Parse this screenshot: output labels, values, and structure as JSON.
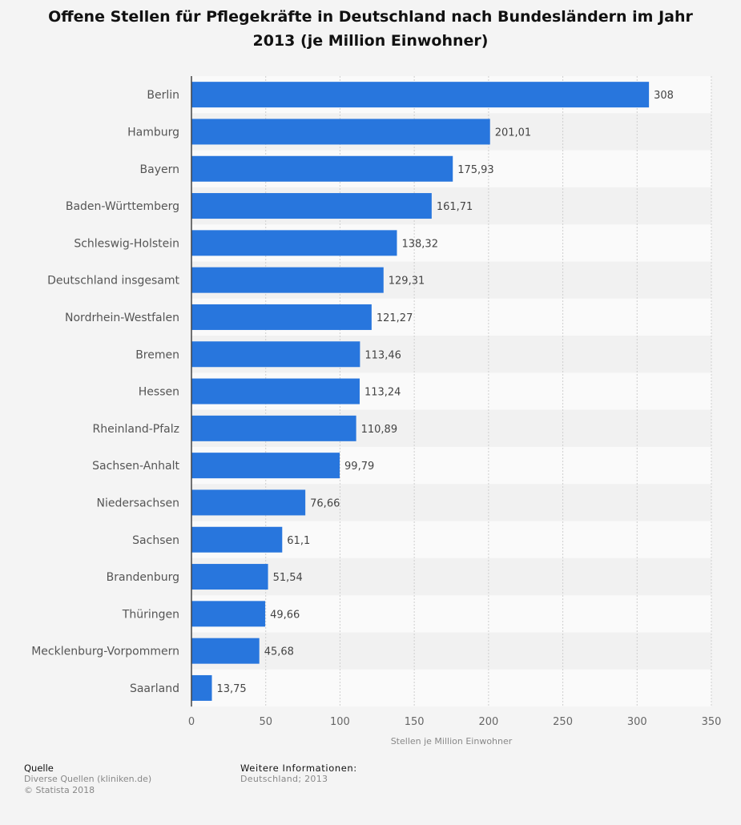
{
  "title": "Offene Stellen für Pflegekräfte in Deutschland nach Bundesländern im Jahr 2013 (je Million Einwohner)",
  "chart_data": {
    "type": "bar",
    "orientation": "horizontal",
    "title": "Offene Stellen für Pflegekräfte in Deutschland nach Bundesländern im Jahr 2013 (je Million Einwohner)",
    "xlabel": "Stellen je Million Einwohner",
    "ylabel": "",
    "xlim": [
      0,
      350
    ],
    "xticks": [
      "0",
      "50",
      "100",
      "150",
      "200",
      "250",
      "300",
      "350"
    ],
    "grid": true,
    "bar_color": "#2876dd",
    "categories": [
      "Berlin",
      "Hamburg",
      "Bayern",
      "Baden-Württemberg",
      "Schleswig-Holstein",
      "Deutschland insgesamt",
      "Nordrhein-Westfalen",
      "Bremen",
      "Hessen",
      "Rheinland-Pfalz",
      "Sachsen-Anhalt",
      "Niedersachsen",
      "Sachsen",
      "Brandenburg",
      "Thüringen",
      "Mecklenburg-Vorpommern",
      "Saarland"
    ],
    "values": [
      308,
      201.01,
      175.93,
      161.71,
      138.32,
      129.31,
      121.27,
      113.46,
      113.24,
      110.89,
      99.79,
      76.66,
      61.1,
      51.54,
      49.66,
      45.68,
      13.75
    ],
    "value_labels": [
      "308",
      "201,01",
      "175,93",
      "161,71",
      "138,32",
      "129,31",
      "121,27",
      "113,46",
      "113,24",
      "110,89",
      "99,79",
      "76,66",
      "61,1",
      "51,54",
      "49,66",
      "45,68",
      "13,75"
    ]
  },
  "footer": {
    "source_heading": "Quelle",
    "source_text": "Diverse Quellen (kliniken.de)",
    "copyright": "© Statista 2018",
    "info_heading": "Weitere Informationen:",
    "info_text": "Deutschland; 2013"
  }
}
